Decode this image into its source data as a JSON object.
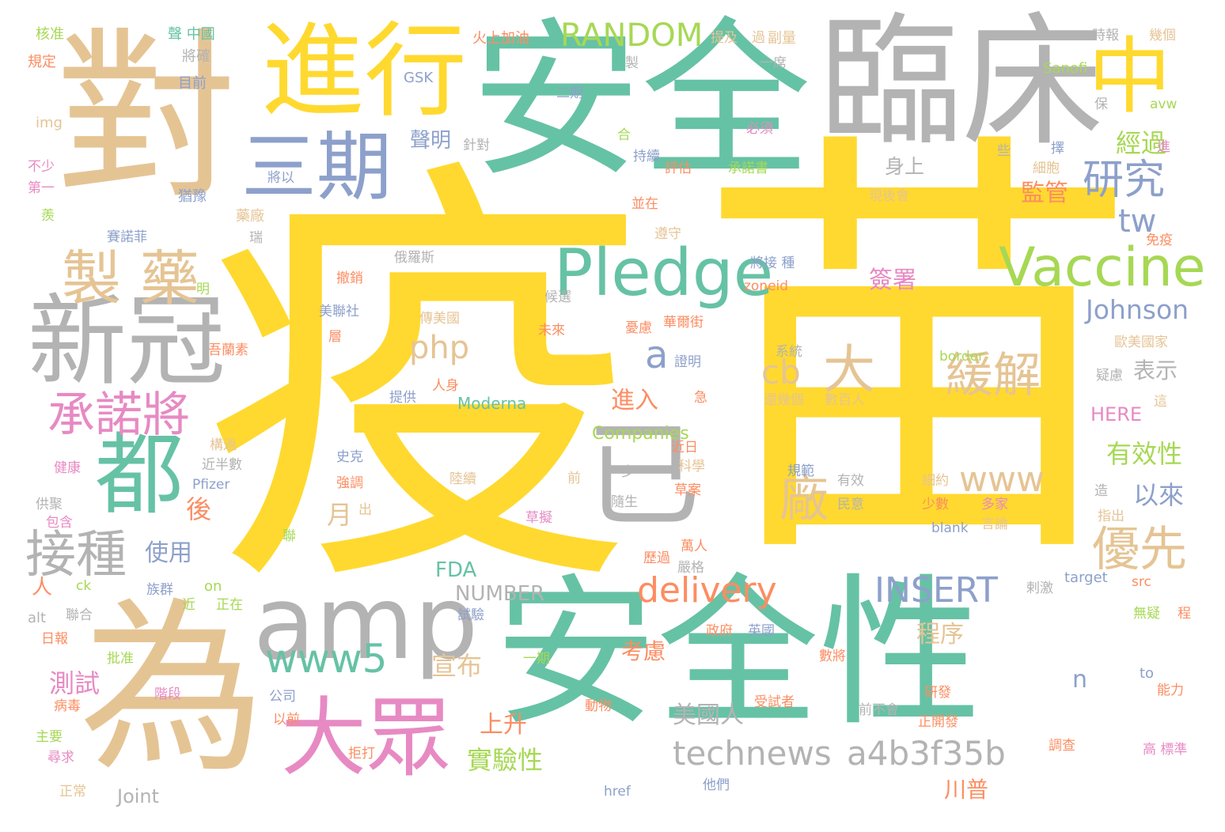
{
  "palette": {
    "yellow": "#ffd92f",
    "tan": "#e5c494",
    "green": "#66c2a5",
    "gray": "#b3b3b3",
    "blue": "#8da0cb",
    "pink": "#e78ac3",
    "lime": "#a6d854",
    "orange": "#fc8d62"
  },
  "words": [
    "疫",
    "苗",
    "安全",
    "安全性",
    "臨床",
    "對",
    "為",
    "進行",
    "中",
    "三期",
    "新冠",
    "amp",
    "都",
    "大眾",
    "Pledge",
    "Vaccine",
    "製 藥",
    "已",
    "研究",
    "緩解",
    "承諾將",
    "接種",
    "優先",
    "delivery",
    "INSERT",
    "www5",
    "technews",
    "a4b3f35b",
    "RANDOM",
    "大",
    "廠",
    "cb",
    "php",
    "a",
    "tw",
    "www",
    "Johnson",
    "監管",
    "經過",
    "有效性",
    "以來",
    "身上",
    "聲明",
    "表示",
    "進入",
    "簽署",
    "使用",
    "測試",
    "美國人",
    "川普",
    "宣布",
    "實驗性",
    "上升",
    "程序",
    "考慮",
    "FDA",
    "NUMBER",
    "Companies",
    "Moderna",
    "HERE",
    "月",
    "後",
    "n",
    "Joint",
    "核准",
    "聲 中國",
    "規定",
    "img",
    "不少",
    "第一",
    "羨",
    "將確",
    "目前",
    "猶豫",
    "藥廠",
    "賽諾菲",
    "瑞",
    "俄羅斯",
    "撤銷",
    "美聯社",
    "層",
    "傳美國",
    "候選",
    "未來",
    "GSK",
    "火上加油",
    "二期",
    "提及",
    "過",
    "副量",
    "一席",
    "製",
    "Sanofi",
    "時報",
    "幾個",
    "保",
    "avw",
    "針對",
    "必須",
    "持續",
    "評估",
    "承諾書",
    "將以",
    "些",
    "擇",
    "細胞",
    "進",
    "現後會",
    "並在",
    "遵守",
    "免疫",
    "將接 種",
    "zoneid",
    "憂慮",
    "華爾街",
    "歐美國家",
    "border",
    "系統",
    "證明",
    "提供",
    "人身",
    "還幾個",
    "數百人",
    "疑慮",
    "這",
    "健康",
    "近半數",
    "史克",
    "近日",
    "科學",
    "規範",
    "有效",
    "細約",
    "強調",
    "Pfizer",
    "一步",
    "隨生",
    "前",
    "少數",
    "多家",
    "民意",
    "供聚",
    "包含",
    "陸續",
    "草案",
    "草擬",
    "blank",
    "言論",
    "指出",
    "聯",
    "萬人",
    "嚴格",
    "族群",
    "ck",
    "on",
    "近",
    "正在",
    "歷過",
    "target",
    "src",
    "剌激",
    "聯合",
    "alt",
    "試驗",
    "政府",
    "英國",
    "無疑",
    "程",
    "日報",
    "批准",
    "一期",
    "數將",
    "階段",
    "病毒",
    "公司",
    "to",
    "能力",
    "動物",
    "受試者",
    "前不會",
    "研發",
    "以前",
    "正開發",
    "主要",
    "拒打",
    "調查",
    "高 標準",
    "尋求",
    "href",
    "他們",
    "正常",
    "出",
    "人",
    "明",
    "造",
    "急",
    "吾蘭素",
    "構過",
    "合",
    "身上"
  ]
}
